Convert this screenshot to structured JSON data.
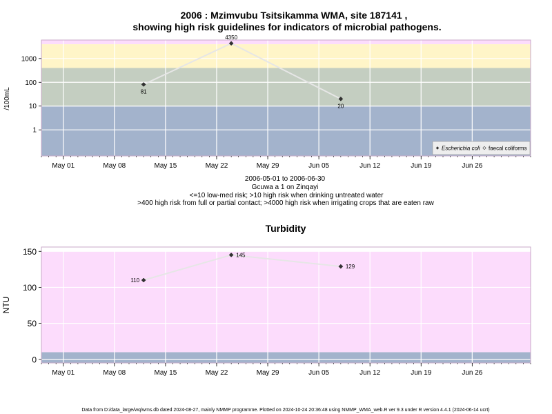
{
  "chart_data": [
    {
      "type": "line",
      "title": [
        "2006 : Mzimvubu Tsitsikamma WMA, site 187141 ,",
        "showing high risk guidelines for indicators of microbial pathogens."
      ],
      "ylabel": "/100mL",
      "yscale": "log",
      "yticks": [
        1,
        10,
        100,
        1000
      ],
      "ytick_labels": [
        "1",
        "10",
        "100",
        "1000"
      ],
      "xticks": [
        "May 01",
        "May 08",
        "May 15",
        "May 22",
        "May 29",
        "Jun 05",
        "Jun 12",
        "Jun 19",
        "Jun 26"
      ],
      "xlim": [
        "2006-04-28",
        "2006-07-04"
      ],
      "bands": [
        {
          "from": 0.08,
          "to": 10,
          "color": "#a3b3cc"
        },
        {
          "from": 10,
          "to": 400,
          "color": "#c4cec1"
        },
        {
          "from": 400,
          "to": 4000,
          "color": "#fff5c8"
        },
        {
          "from": 4000,
          "to": 6000,
          "color": "#fcdcfc"
        }
      ],
      "series": [
        {
          "name": "Escherichia coli",
          "marker": "filled-diamond",
          "color": "#333333",
          "x": [
            "2006-05-12",
            "2006-05-24",
            "2006-06-08"
          ],
          "y": [
            81,
            4350,
            20
          ],
          "labels": [
            "81",
            "4350",
            "20"
          ]
        }
      ],
      "legend": {
        "position": "bottom-right",
        "entries": [
          "Escherichia coli",
          "faecal coliforms"
        ]
      },
      "caption": [
        "2006-05-01 to 2006-06-30",
        "Gcuwa a 1 on Zinqayi",
        "<=10 low-med risk; >10 high risk when drinking untreated water",
        ">400 high risk from full or partial contact; >4000 high risk when irrigating crops that are eaten raw"
      ]
    },
    {
      "type": "line",
      "title": "Turbidity",
      "ylabel": "NTU",
      "ylim": [
        -5,
        150
      ],
      "yticks": [
        0,
        50,
        100,
        150
      ],
      "xticks": [
        "May 01",
        "May 08",
        "May 15",
        "May 22",
        "May 29",
        "Jun 05",
        "Jun 12",
        "Jun 19",
        "Jun 26"
      ],
      "xlim": [
        "2006-04-28",
        "2006-07-04"
      ],
      "bands": [
        {
          "from": -5,
          "to": 10,
          "color": "#a3b3cc"
        },
        {
          "from": 10,
          "to": 150,
          "color": "#fcdcfc"
        }
      ],
      "series": [
        {
          "name": "Turbidity",
          "marker": "filled-diamond",
          "color": "#333333",
          "x": [
            "2006-05-12",
            "2006-05-24",
            "2006-06-08"
          ],
          "y": [
            110,
            145,
            129
          ],
          "labels": [
            "110",
            "145",
            "129"
          ]
        }
      ]
    }
  ],
  "footer": "Data from D:/data_large/wq/wms.db dated 2024-08-27, mainly NMMP programme. Plotted on 2024-10-24 20:36:48 using NMMP_WMA_web.R ver 9.3 under R version 4.4.1 (2024-06-14 ucrt)"
}
